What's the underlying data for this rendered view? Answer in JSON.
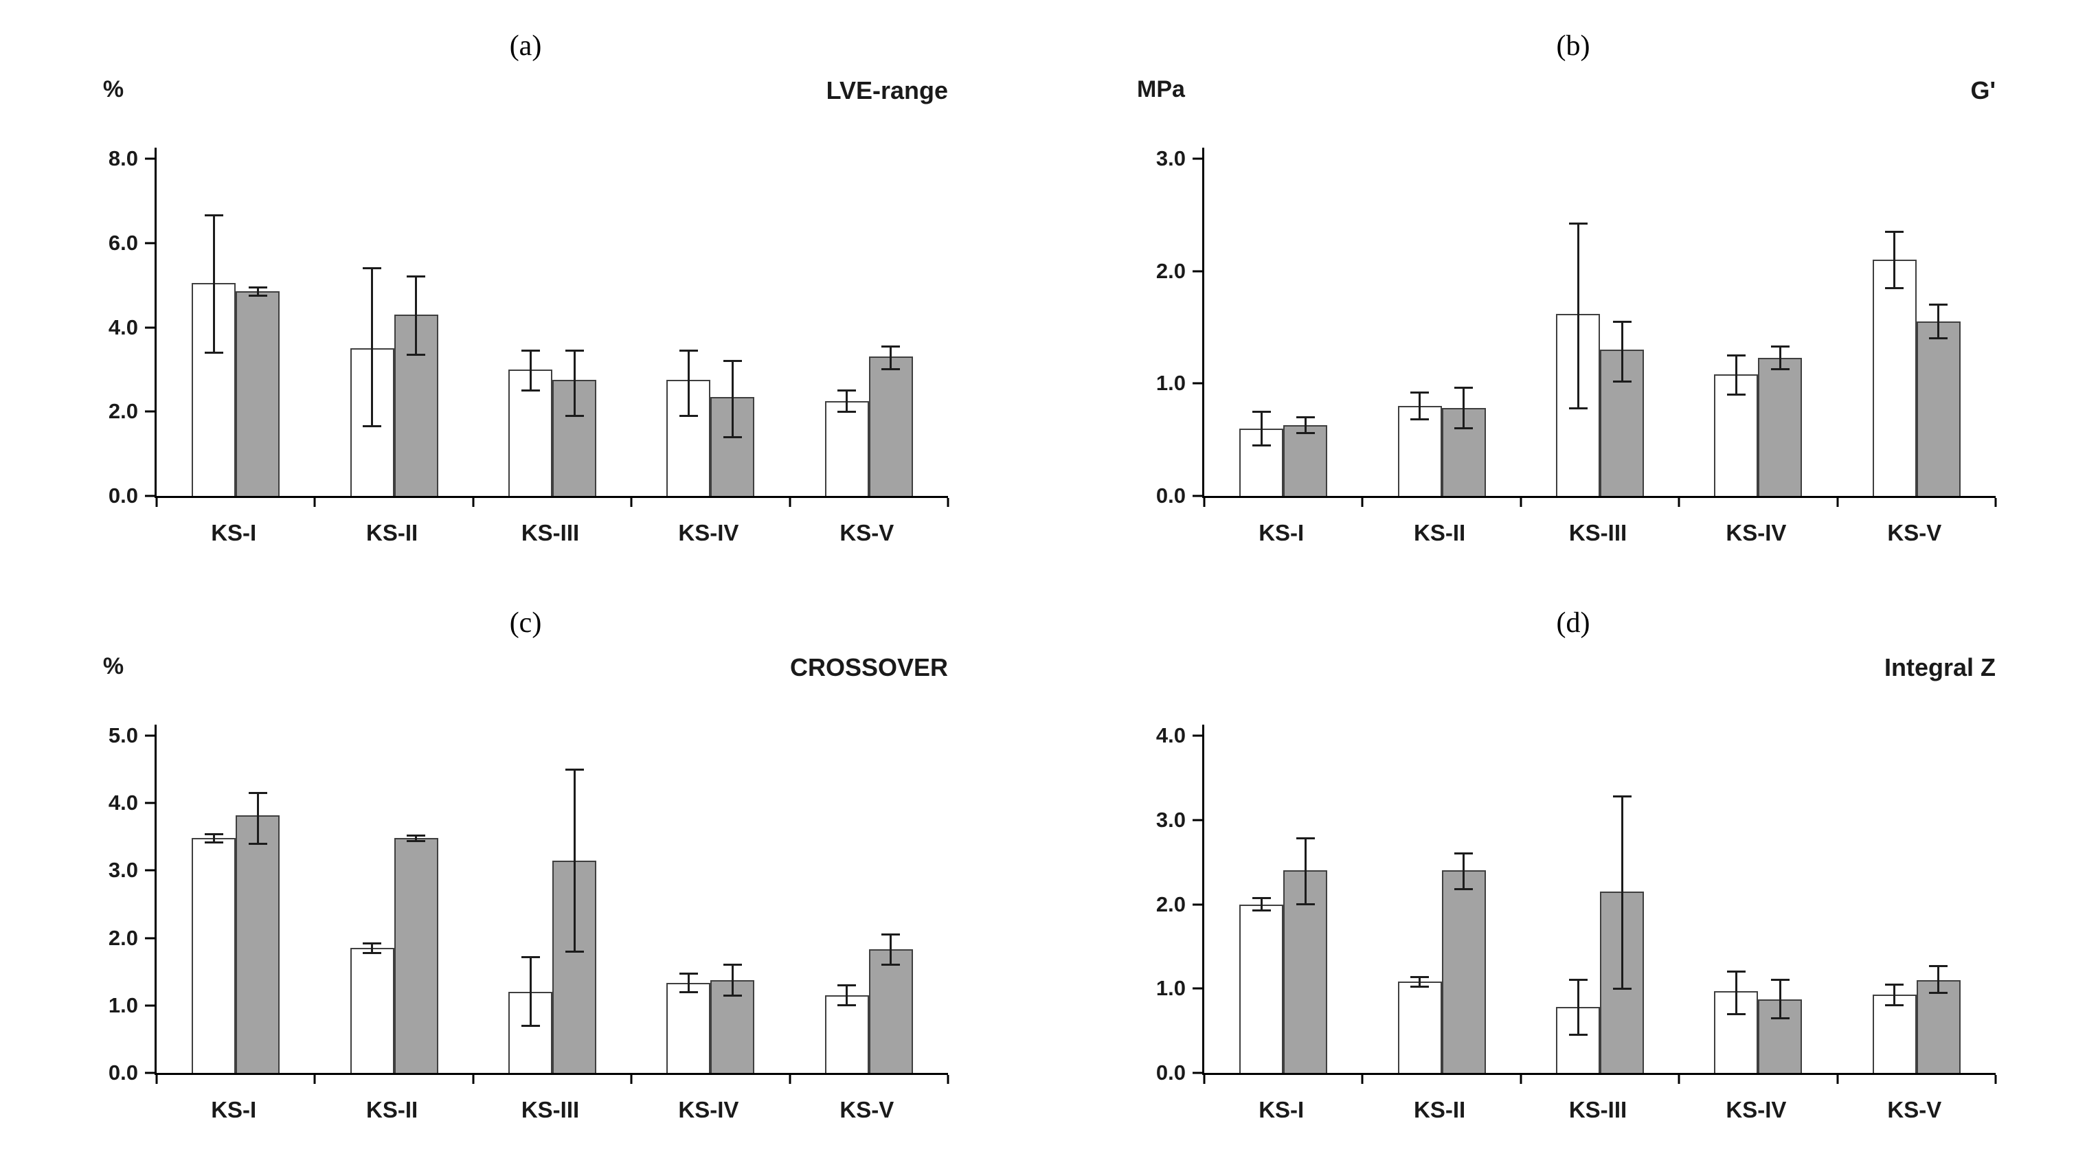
{
  "accent_colors": {
    "bar_white": "#ffffff",
    "bar_gray": "#a3a3a3",
    "axis": "#000000",
    "error_bar": "#1c1c1c"
  },
  "chart_data": [
    {
      "type": "bar",
      "panel_label": "(a)",
      "title": "LVE-range",
      "ylabel": "%",
      "xlabel": "",
      "ylim": [
        0,
        8
      ],
      "yticks": [
        0.0,
        2.0,
        4.0,
        6.0,
        8.0
      ],
      "grid": false,
      "legend": "none",
      "categories": [
        "KS-I",
        "KS-II",
        "KS-III",
        "KS-IV",
        "KS-V"
      ],
      "series": [
        {
          "name": "white",
          "fill": "#ffffff",
          "values": [
            5.05,
            3.5,
            3.0,
            2.75,
            2.25
          ],
          "err_lo": [
            3.4,
            1.65,
            2.5,
            1.9,
            2.0
          ],
          "err_hi": [
            6.65,
            5.4,
            3.45,
            3.45,
            2.5
          ]
        },
        {
          "name": "gray",
          "fill": "#a3a3a3",
          "values": [
            4.85,
            4.3,
            2.75,
            2.35,
            3.3
          ],
          "err_lo": [
            4.75,
            3.35,
            1.9,
            1.4,
            3.0
          ],
          "err_hi": [
            4.95,
            5.2,
            3.45,
            3.2,
            3.55
          ]
        }
      ]
    },
    {
      "type": "bar",
      "panel_label": "(b)",
      "title": "G'",
      "ylabel": "MPa",
      "xlabel": "",
      "ylim": [
        0,
        3
      ],
      "yticks": [
        0.0,
        1.0,
        2.0,
        3.0
      ],
      "grid": false,
      "legend": "none",
      "categories": [
        "KS-I",
        "KS-II",
        "KS-III",
        "KS-IV",
        "KS-V"
      ],
      "series": [
        {
          "name": "white",
          "fill": "#ffffff",
          "values": [
            0.6,
            0.8,
            1.62,
            1.08,
            2.1
          ],
          "err_lo": [
            0.45,
            0.68,
            0.78,
            0.9,
            1.85
          ],
          "err_hi": [
            0.75,
            0.92,
            2.42,
            1.25,
            2.35
          ]
        },
        {
          "name": "gray",
          "fill": "#a3a3a3",
          "values": [
            0.63,
            0.78,
            1.3,
            1.23,
            1.55
          ],
          "err_lo": [
            0.56,
            0.6,
            1.02,
            1.13,
            1.4
          ],
          "err_hi": [
            0.7,
            0.96,
            1.55,
            1.33,
            1.7
          ]
        }
      ]
    },
    {
      "type": "bar",
      "panel_label": "(c)",
      "title": "CROSSOVER",
      "ylabel": "%",
      "xlabel": "",
      "ylim": [
        0,
        5
      ],
      "yticks": [
        0.0,
        1.0,
        2.0,
        3.0,
        4.0,
        5.0
      ],
      "grid": false,
      "legend": "none",
      "categories": [
        "KS-I",
        "KS-II",
        "KS-III",
        "KS-IV",
        "KS-V"
      ],
      "series": [
        {
          "name": "white",
          "fill": "#ffffff",
          "values": [
            3.48,
            1.85,
            1.2,
            1.33,
            1.15
          ],
          "err_lo": [
            3.42,
            1.78,
            0.7,
            1.2,
            1.0
          ],
          "err_hi": [
            3.54,
            1.92,
            1.72,
            1.47,
            1.3
          ]
        },
        {
          "name": "gray",
          "fill": "#a3a3a3",
          "values": [
            3.82,
            3.48,
            3.15,
            1.37,
            1.83
          ],
          "err_lo": [
            3.4,
            3.44,
            1.8,
            1.15,
            1.6
          ],
          "err_hi": [
            4.15,
            3.52,
            4.5,
            1.6,
            2.05
          ]
        }
      ]
    },
    {
      "type": "bar",
      "panel_label": "(d)",
      "title": "Integral Z",
      "ylabel": "",
      "xlabel": "",
      "ylim": [
        0,
        4
      ],
      "yticks": [
        0.0,
        1.0,
        2.0,
        3.0,
        4.0
      ],
      "grid": false,
      "legend": "none",
      "categories": [
        "KS-I",
        "KS-II",
        "KS-III",
        "KS-IV",
        "KS-V"
      ],
      "series": [
        {
          "name": "white",
          "fill": "#ffffff",
          "values": [
            2.0,
            1.08,
            0.78,
            0.97,
            0.93
          ],
          "err_lo": [
            1.93,
            1.02,
            0.45,
            0.7,
            0.8
          ],
          "err_hi": [
            2.07,
            1.14,
            1.1,
            1.2,
            1.05
          ]
        },
        {
          "name": "gray",
          "fill": "#a3a3a3",
          "values": [
            2.4,
            2.4,
            2.15,
            0.87,
            1.1
          ],
          "err_lo": [
            2.0,
            2.18,
            1.0,
            0.65,
            0.95
          ],
          "err_hi": [
            2.78,
            2.6,
            3.28,
            1.1,
            1.27
          ]
        }
      ]
    }
  ]
}
